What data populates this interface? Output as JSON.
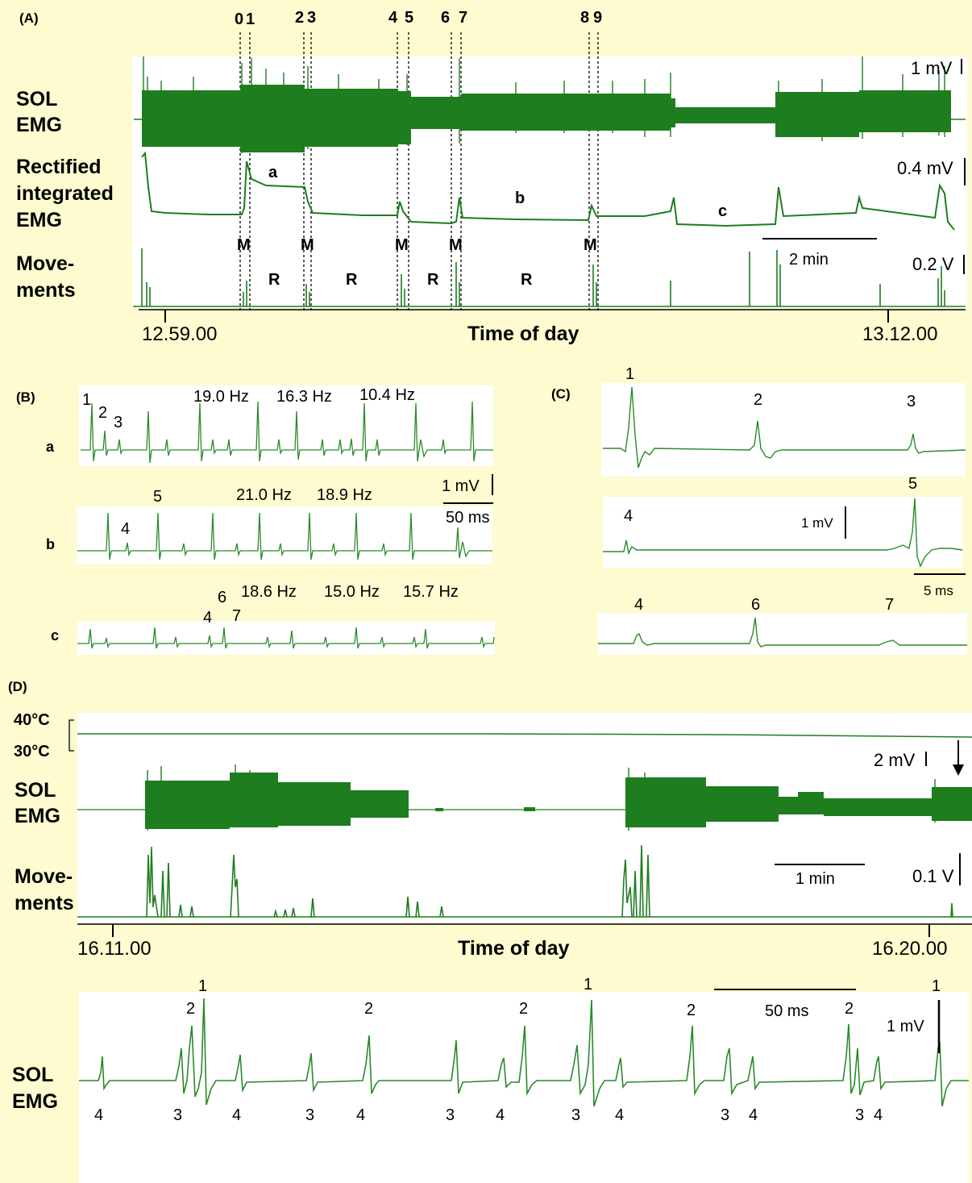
{
  "panel_a": {
    "label": "(A)",
    "markers": [
      "0",
      "1",
      "2",
      "3",
      "4",
      "5",
      "6",
      "7",
      "8",
      "9"
    ],
    "row_labels": {
      "sol_line1": "SOL",
      "sol_line2": "EMG",
      "rect_line1": "Rectified",
      "rect_line2": "integrated",
      "rect_line3": "EMG",
      "mov_line1": "Move-",
      "mov_line2": "ments"
    },
    "scale_sol": "1 mV",
    "scale_rect": "0.4 mV",
    "scale_mov": "0.2 V",
    "time_scale": "2 min",
    "segment_labels": [
      "a",
      "b",
      "c"
    ],
    "movement_marks": [
      "M",
      "M",
      "M",
      "M",
      "M"
    ],
    "rest_marks": [
      "R",
      "R",
      "R",
      "R"
    ],
    "xaxis_title": "Time of day",
    "ticks": [
      "12.59.00",
      "13.12.00"
    ]
  },
  "panel_b": {
    "label": "(B)",
    "rows": [
      "a",
      "b",
      "c"
    ],
    "a_units": [
      "1",
      "2",
      "3"
    ],
    "a_freqs": [
      "19.0 Hz",
      "16.3 Hz",
      "10.4 Hz"
    ],
    "b_units": [
      "4",
      "5"
    ],
    "b_freqs": [
      "21.0 Hz",
      "18.9 Hz"
    ],
    "c_units": [
      "4",
      "6",
      "7"
    ],
    "c_freqs": [
      "18.6 Hz",
      "15.0 Hz",
      "15.7 Hz"
    ],
    "scale_v": "1 mV",
    "scale_t": "50 ms"
  },
  "panel_c": {
    "label": "(C)",
    "row1_units": [
      "1",
      "2",
      "3"
    ],
    "row2_units": [
      "4",
      "5"
    ],
    "row3_units": [
      "4",
      "6",
      "7"
    ],
    "scale_v": "1 mV",
    "scale_t": "5 ms"
  },
  "panel_d": {
    "label": "(D)",
    "temp_high": "40°C",
    "temp_low": "30°C",
    "sol_line1": "SOL",
    "sol_line2": "EMG",
    "mov_line1": "Move-",
    "mov_line2": "ments",
    "scale_sol": "2 mV",
    "scale_mov": "0.1 V",
    "time_scale": "1 min",
    "xaxis_title": "Time of day",
    "ticks": [
      "16.11.00",
      "16.20.00"
    ]
  },
  "panel_e": {
    "sol_line1": "SOL",
    "sol_line2": "EMG",
    "scale_t": "50 ms",
    "scale_v": "1 mV",
    "top_units": [
      "1",
      "2",
      "2",
      "2",
      "1",
      "2",
      "2",
      "1"
    ],
    "bottom_units": [
      "4",
      "3",
      "4",
      "3",
      "4",
      "3",
      "4",
      "3",
      "4",
      "3",
      "4",
      "3",
      "4"
    ]
  },
  "colors": {
    "trace": "#1e7d1e",
    "background": "#fdfbcf",
    "box": "#ffffff"
  }
}
